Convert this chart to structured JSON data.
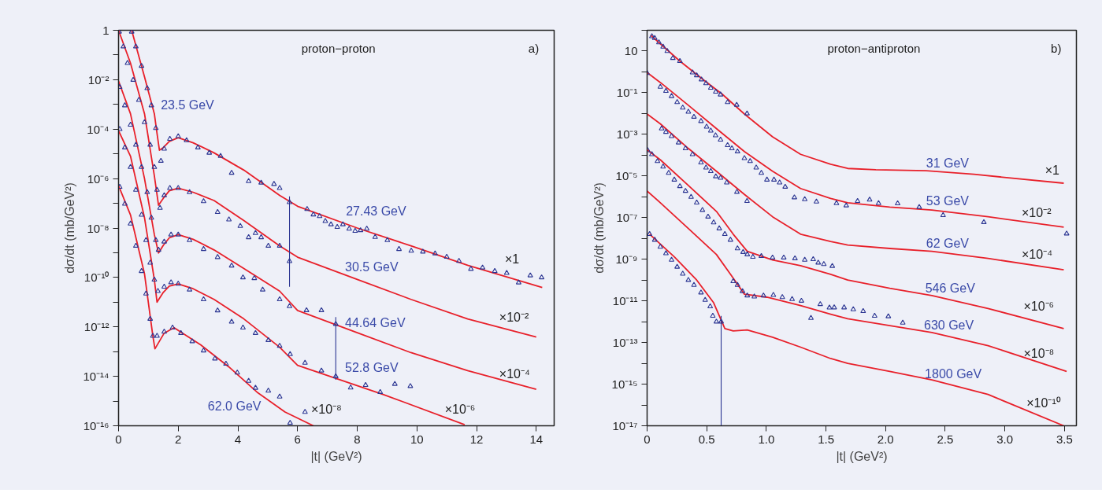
{
  "chart_data": [
    {
      "type": "scatter",
      "title": "proton−proton",
      "subtitle": "a)",
      "xlabel": "|t| (GeV²)",
      "ylabel": "dσ/dt (mb/GeV²)",
      "log": "y",
      "grid": false,
      "xlim": [
        0,
        14.6
      ],
      "ylim": [
        1e-16,
        1
      ],
      "xticks": [
        0,
        2,
        4,
        6,
        8,
        10,
        12,
        14
      ],
      "yticks": [
        1,
        {
          "value": 0.1,
          "label": null
        },
        {
          "value": 0.01,
          "label": "10⁻²"
        },
        {
          "value": 0.001,
          "label": null
        },
        {
          "value": 0.0001,
          "label": "10⁻⁴"
        },
        {
          "value": 1e-05,
          "label": null
        },
        {
          "value": 1e-06,
          "label": "10⁻⁶"
        },
        {
          "value": 1e-07,
          "label": null
        },
        {
          "value": 1e-08,
          "label": "10⁻⁸"
        },
        {
          "value": 1e-09,
          "label": null
        },
        {
          "value": 1e-10,
          "label": "10⁻¹⁰"
        },
        {
          "value": 1e-11,
          "label": null
        },
        {
          "value": 1e-12,
          "label": "10⁻¹²"
        },
        {
          "value": 1e-13,
          "label": null
        },
        {
          "value": 1e-14,
          "label": "10⁻¹⁴"
        },
        {
          "value": 1e-15,
          "label": null
        },
        {
          "value": 1e-16,
          "label": "10⁻¹⁶"
        }
      ],
      "series": [
        {
          "type": "line",
          "color": "#e8202a",
          "x": [
            0.44,
            0.87,
            1.2,
            1.29,
            1.37,
            1.5,
            1.7,
            2.0,
            2.5,
            3.2,
            4.2,
            5.4,
            6.0,
            8.0,
            9.8,
            11.7,
            14.2
          ],
          "values": [
            1,
            0.013,
            0.00042,
            6.6e-05,
            1.4e-05,
            1.8e-05,
            3.2e-05,
            4.5e-05,
            2.8e-05,
            1.1e-05,
            2.2e-06,
            2.1e-07,
            7.6e-08,
            1e-08,
            1.9e-09,
            3.1e-10,
            3.9e-11
          ]
        },
        {
          "type": "line",
          "color": "#e8202a",
          "x": [
            0,
            0.4,
            0.87,
            1.2,
            1.34,
            1.5,
            1.7,
            2.0,
            2.5,
            3.2,
            4.2,
            5.4,
            6.0,
            8.0,
            9.8,
            11.7,
            14.0
          ],
          "values": [
            1,
            0.047,
            0.00042,
            1.3e-06,
            8.3e-08,
            1.6e-07,
            3.2e-07,
            4.1e-07,
            2.8e-07,
            1.3e-07,
            2e-08,
            1.9e-09,
            6.6e-10,
            8.3e-11,
            1.3e-11,
            2.1e-12,
            3.9e-13
          ]
        },
        {
          "type": "line",
          "color": "#e8202a",
          "x": [
            0,
            0.4,
            0.87,
            1.2,
            1.34,
            1.5,
            1.7,
            2.0,
            2.5,
            3.2,
            4.2,
            5.4,
            6.0,
            8.0,
            9.8,
            11.7,
            14.0
          ],
          "values": [
            0.0089,
            0.00042,
            1e-06,
            5.4e-09,
            9.8e-10,
            2e-09,
            4e-09,
            5.4e-09,
            3.5e-09,
            1.3e-09,
            2.3e-10,
            2.8e-11,
            4.6e-12,
            5.8e-13,
            9.1e-14,
            1.7e-14,
            3e-15
          ]
        },
        {
          "type": "line",
          "color": "#e8202a",
          "x": [
            0,
            0.4,
            0.87,
            1.2,
            1.29,
            1.5,
            1.7,
            2.0,
            2.5,
            3.2,
            4.2,
            5.4,
            6.0,
            8.9,
            11.6
          ],
          "values": [
            8.7e-05,
            8.1e-06,
            2.6e-08,
            8.1e-11,
            1e-11,
            2.5e-11,
            4.5e-11,
            5.5e-11,
            3.5e-11,
            1.3e-11,
            2.1e-12,
            1.5e-13,
            2.8e-14,
            1.8e-15,
            1.1e-16
          ]
        },
        {
          "type": "line",
          "color": "#e8202a",
          "x": [
            0,
            0.4,
            0.87,
            1.15,
            1.22,
            1.53,
            1.86,
            2.75,
            3.7,
            4.64,
            5.58,
            6.53
          ],
          "values": [
            5.2e-07,
            3.4e-08,
            1.4e-10,
            4.3e-13,
            1.3e-13,
            5.6e-13,
            9.3e-13,
            1.9e-13,
            2.4e-14,
            2.3e-15,
            3.6e-16,
            1e-16
          ]
        },
        {
          "marker": "triangle",
          "color": "#2b3592",
          "x": [
            0.44,
            0.58,
            0.77,
            0.96,
            1.1,
            1.25,
            1.42,
            1.53,
            1.72,
            2.0,
            2.28,
            2.66,
            3.04,
            3.42,
            3.79,
            4.36,
            4.78,
            5.21,
            5.4,
            5.73,
            6.32,
            6.53,
            6.74,
            6.93,
            7.12,
            7.33,
            7.52,
            7.73,
            7.93,
            8.11,
            8.32,
            8.6,
            9.01,
            9.4,
            9.81,
            10.2,
            10.61,
            11.0,
            11.41,
            11.81,
            12.2,
            12.61,
            13.01,
            13.41,
            13.8,
            14.18
          ],
          "values": [
            0.87,
            0.22,
            0.036,
            0.0045,
            0.00091,
            0.00011,
            5.2e-06,
            1.6e-05,
            4e-05,
            5.1e-05,
            3.5e-05,
            1.8e-05,
            1.1e-05,
            8.1e-06,
            1.7e-06,
            7.8e-07,
            6.8e-07,
            6e-07,
            4.1e-07,
            1.1e-07,
            5.8e-08,
            3.5e-08,
            3e-08,
            1.9e-08,
            1.4e-08,
            1.1e-08,
            1.4e-08,
            9.3e-09,
            7.6e-09,
            8.1e-09,
            9.3e-09,
            4.3e-09,
            3.2e-09,
            1.4e-09,
            1.2e-09,
            1.1e-09,
            9.3e-10,
            6.8e-10,
            4.6e-10,
            2.2e-10,
            2.5e-10,
            1.8e-10,
            1.5e-10,
            6.2e-11,
            1.2e-10,
            1e-10
          ]
        },
        {
          "marker": "triangle",
          "color": "#2b3592",
          "x": [
            0.02,
            0.16,
            0.3,
            0.49,
            0.68,
            0.87,
            1.06,
            1.2,
            1.29,
            1.39,
            1.53,
            1.72,
            2.0,
            2.38,
            2.85,
            3.32,
            3.7,
            4.08,
            4.36,
            4.59,
            4.78,
            5.02,
            5.4,
            5.73
          ],
          "values": [
            0.87,
            0.22,
            0.047,
            0.0098,
            0.0015,
            0.00019,
            2.3e-05,
            2.9e-06,
            3.5e-07,
            6.5e-08,
            2.1e-07,
            4.1e-07,
            4.1e-07,
            2.8e-07,
            1.2e-07,
            4.4e-08,
            2.2e-08,
            1.2e-08,
            4.2e-09,
            6.2e-09,
            4.2e-09,
            1.9e-09,
            1.9e-09,
            4.5e-10
          ],
          "errors": [
            null,
            null,
            null,
            null,
            null,
            null,
            null,
            null,
            null,
            null,
            null,
            null,
            null,
            null,
            null,
            null,
            null,
            null,
            null,
            null,
            null,
            null,
            null,
            [
              4.2e-11,
              1.9e-07
            ]
          ]
        },
        {
          "marker": "triangle",
          "color": "#2b3592",
          "x": [
            0.04,
            0.21,
            0.4,
            0.58,
            0.77,
            0.96,
            1.1,
            1.25,
            1.34,
            1.53,
            1.76,
            2.0,
            2.38,
            2.85,
            3.32,
            3.79,
            4.17,
            4.55,
            4.83,
            5.4,
            5.73,
            6.3,
            6.8,
            7.28
          ],
          "values": [
            0.005,
            0.00091,
            0.00015,
            2.3e-05,
            2.9e-06,
            2.8e-07,
            2.6e-08,
            3.2e-09,
            1.3e-09,
            2.8e-09,
            5.4e-09,
            5.4e-09,
            3.2e-09,
            1.4e-09,
            6.6e-10,
            3e-10,
            1e-10,
            9.3e-11,
            3.2e-11,
            1.3e-11,
            6.8e-12,
            4.7e-12,
            4.7e-12,
            1.3e-12
          ]
        },
        {
          "marker": "triangle",
          "color": "#2b3592",
          "x": [
            0.04,
            0.21,
            0.4,
            0.58,
            0.77,
            0.92,
            1.06,
            1.2,
            1.32,
            1.53,
            1.76,
            2.0,
            2.38,
            2.85,
            3.32,
            3.79,
            4.17,
            4.59,
            5.02,
            5.4,
            5.75,
            6.25,
            6.8,
            7.28,
            7.78,
            8.28,
            8.77,
            9.26,
            9.78
          ],
          "values": [
            0.0001,
            1.8e-05,
            2.9e-06,
            3.5e-07,
            3.4e-08,
            3.2e-09,
            3.9e-10,
            8.1e-11,
            2.8e-11,
            4.2e-11,
            6.3e-11,
            5.5e-11,
            3.2e-11,
            1.3e-11,
            4.6e-12,
            1.6e-12,
            9.3e-13,
            5.6e-13,
            2.9e-13,
            1.7e-13,
            7.8e-14,
            3.5e-14,
            1.7e-14,
            1e-14,
            3.5e-15,
            4.4e-15,
            2.3e-15,
            4.9e-15,
            4e-15
          ],
          "errors": [
            null,
            null,
            null,
            null,
            null,
            null,
            null,
            null,
            null,
            null,
            null,
            null,
            null,
            null,
            null,
            null,
            null,
            null,
            null,
            null,
            null,
            null,
            null,
            [
              7.2e-15,
              2.5e-12
            ],
            null,
            null,
            null,
            null,
            null
          ]
        },
        {
          "marker": "triangle",
          "color": "#2b3592",
          "x": [
            0.04,
            0.21,
            0.4,
            0.58,
            0.77,
            0.92,
            1.06,
            1.15,
            1.29,
            1.53,
            1.81,
            2.09,
            2.47,
            2.85,
            3.23,
            3.6,
            3.98,
            4.36,
            4.59,
            5.02,
            5.4,
            5.75,
            6.25
          ],
          "values": [
            4.6e-07,
            9.5e-08,
            1.5e-08,
            1.9e-09,
            1.8e-10,
            2.2e-11,
            2.1e-12,
            4.3e-13,
            4.3e-13,
            6.3e-13,
            9.3e-13,
            5.6e-13,
            2.6e-13,
            1.1e-13,
            5.2e-14,
            3.2e-14,
            1.4e-14,
            6.5e-15,
            3.4e-15,
            2.6e-15,
            1.5e-15,
            1.3e-16,
            3.6e-16
          ]
        }
      ],
      "annotations": [
        "23.5 GeV",
        "27.43 GeV",
        "30.5 GeV",
        "44.64 GeV",
        "52.8 GeV",
        "62.0 GeV",
        "×1",
        "×10⁻²",
        "×10⁻⁴",
        "×10⁻⁶",
        "×10⁻⁸"
      ]
    },
    {
      "type": "scatter",
      "title": "proton−antiproton",
      "subtitle": "b)",
      "xlabel": "|t| (GeV²)",
      "ylabel": "dσ/dt (mb/GeV²)",
      "log": "y",
      "grid": false,
      "xlim": [
        0,
        3.6
      ],
      "ylim": [
        1e-17,
        100
      ],
      "xticks": [
        0,
        0.5,
        {
          "value": 1,
          "label": "1.0"
        },
        1.5,
        {
          "value": 2,
          "label": "2.0"
        },
        2.5,
        {
          "value": 3,
          "label": "3.0"
        },
        3.5
      ],
      "yticks": [
        {
          "value": 100,
          "label": null
        },
        10,
        {
          "value": 1,
          "label": null
        },
        {
          "value": 0.1,
          "label": "10⁻¹"
        },
        {
          "value": 0.01,
          "label": null
        },
        {
          "value": 0.001,
          "label": "10⁻³"
        },
        {
          "value": 0.0001,
          "label": null
        },
        {
          "value": 1e-05,
          "label": "10⁻⁵"
        },
        {
          "value": 1e-06,
          "label": null
        },
        {
          "value": 1e-07,
          "label": "10⁻⁷"
        },
        {
          "value": 1e-08,
          "label": null
        },
        {
          "value": 1e-09,
          "label": "10⁻⁹"
        },
        {
          "value": 1e-10,
          "label": null
        },
        {
          "value": 1e-11,
          "label": "10⁻¹¹"
        },
        {
          "value": 1e-12,
          "label": null
        },
        {
          "value": 1e-13,
          "label": "10⁻¹³"
        },
        {
          "value": 1e-14,
          "label": null
        },
        {
          "value": 1e-15,
          "label": "10⁻¹⁵"
        },
        {
          "value": 1e-16,
          "label": null
        },
        {
          "value": 1e-17,
          "label": "10⁻¹⁷"
        }
      ],
      "series": [
        {
          "type": "line",
          "color": "#e8202a",
          "x": [
            0.03,
            0.275,
            0.487,
            0.628,
            0.816,
            1.052,
            1.287,
            1.539,
            1.682,
            1.918,
            2.341,
            2.741,
            3.494
          ],
          "values": [
            58,
            3.3,
            0.36,
            0.087,
            0.0095,
            0.00076,
            0.00011,
            3.7e-05,
            2.3e-05,
            2e-05,
            1.8e-05,
            1.2e-05,
            4.5e-06
          ]
        },
        {
          "type": "line",
          "color": "#e8202a",
          "x": [
            0,
            0.111,
            0.346,
            0.581,
            0.816,
            1.052,
            1.287,
            1.539,
            1.682,
            2.035,
            2.388,
            2.859,
            3.494
          ],
          "values": [
            0.93,
            0.31,
            0.025,
            0.0019,
            0.00015,
            1.7e-05,
            2.5e-06,
            8.3e-07,
            5.2e-07,
            3.2e-07,
            2.3e-07,
            1.1e-07,
            3.5e-08
          ]
        },
        {
          "type": "line",
          "color": "#e8202a",
          "x": [
            0,
            0.111,
            0.346,
            0.581,
            0.816,
            1.052,
            1.287,
            1.539,
            1.682,
            2.035,
            2.388,
            2.859,
            3.494
          ],
          "values": [
            0.0095,
            0.0032,
            0.00021,
            1.7e-05,
            1.3e-06,
            1.1e-07,
            1.6e-08,
            7.2e-09,
            4.8e-09,
            3.3e-09,
            2.4e-09,
            1.1e-09,
            3.1e-10
          ]
        },
        {
          "type": "line",
          "color": "#e8202a",
          "x": [
            0,
            0.111,
            0.346,
            0.581,
            0.722,
            0.84,
            1.052,
            1.287,
            1.539,
            1.682,
            2.035,
            2.388,
            2.859,
            3.494
          ],
          "values": [
            0.00018,
            6e-05,
            3.5e-06,
            2e-07,
            1.6e-08,
            2.4e-09,
            9.3e-10,
            4.9e-10,
            1.9e-10,
            1e-10,
            4e-11,
            1.8e-11,
            4.3e-12,
            4.7e-13
          ]
        },
        {
          "type": "line",
          "color": "#e8202a",
          "x": [
            0,
            0.111,
            0.346,
            0.581,
            0.699,
            0.816,
            1.005,
            1.287,
            1.539,
            1.682,
            2.035,
            2.388,
            2.859,
            3.518
          ],
          "values": [
            1.9e-06,
            5.2e-07,
            3e-08,
            1.7e-09,
            1.9e-10,
            2.1e-11,
            1.5e-11,
            5.9e-12,
            2.3e-12,
            1.4e-12,
            6.5e-13,
            3e-13,
            7.1e-14,
            4.1e-15
          ]
        },
        {
          "type": "line",
          "color": "#e8202a",
          "x": [
            0.021,
            0.228,
            0.416,
            0.558,
            0.652,
            0.722,
            0.84,
            1.052,
            1.287,
            1.539,
            1.682,
            2.035,
            2.388,
            2.859,
            3.494
          ],
          "values": [
            1.6e-08,
            1.3e-09,
            1e-10,
            8.1e-12,
            4.7e-13,
            3.6e-13,
            4e-13,
            1.8e-13,
            6e-14,
            1.7e-14,
            1e-14,
            4.1e-15,
            1.6e-15,
            3.2e-16,
            1e-17
          ]
        },
        {
          "marker": "triangle",
          "color": "#2b3592",
          "x": [
            0.04,
            0.064,
            0.099,
            0.134,
            0.169,
            0.216,
            0.275,
            0.381,
            0.416,
            0.456,
            0.494,
            0.534,
            0.576,
            0.616,
            0.675,
            0.751,
            0.838
          ],
          "values": [
            51,
            42,
            26,
            16,
            10,
            4.6,
            3.3,
            0.93,
            0.68,
            0.43,
            0.28,
            0.17,
            0.11,
            0.081,
            0.035,
            0.026,
            0.01
          ]
        },
        {
          "marker": "triangle",
          "color": "#2b3592",
          "x": [
            0,
            0.111,
            0.158,
            0.205,
            0.252,
            0.299,
            0.346,
            0.393,
            0.452,
            0.499,
            0.534,
            0.574,
            0.616,
            0.675,
            0.711,
            0.758,
            0.816,
            0.864,
            0.915,
            0.958,
            1.005,
            1.064,
            1.111,
            1.158,
            1.235,
            1.322,
            1.42,
            1.588,
            1.67,
            1.765,
            1.866,
            1.941,
            2.101,
            2.282,
            2.482,
            2.824,
            3.518
          ],
          "values": [
            0.87,
            0.19,
            0.12,
            0.068,
            0.035,
            0.019,
            0.012,
            0.0069,
            0.0043,
            0.0023,
            0.0015,
            0.00089,
            0.00055,
            0.0003,
            0.00021,
            0.00015,
            7.1e-05,
            5.1e-05,
            2.5e-05,
            1.4e-05,
            6.6e-06,
            6.6e-06,
            4.8e-06,
            3e-06,
            9.3e-07,
            7.6e-07,
            5.8e-07,
            4.9e-07,
            3.8e-07,
            6.2e-07,
            7.2e-07,
            4.9e-07,
            4.8e-07,
            3.2e-07,
            1.3e-07,
            6e-08,
            1.7e-08
          ]
        },
        {
          "marker": "triangle",
          "color": "#2b3592",
          "x": [
            0.122,
            0.158,
            0.205,
            0.264,
            0.322,
            0.381,
            0.452,
            0.494,
            0.534,
            0.576,
            0.616,
            0.668,
            0.753,
            0.838
          ],
          "values": [
            0.0019,
            0.0013,
            0.00081,
            0.0004,
            0.00021,
            0.00011,
            4.4e-05,
            2.5e-05,
            1.7e-05,
            9.5e-06,
            8.1e-06,
            4.8e-06,
            1.7e-06,
            6.2e-07
          ]
        },
        {
          "marker": "triangle",
          "color": "#2b3592",
          "x": [
            0.005,
            0.04,
            0.087,
            0.134,
            0.181,
            0.228,
            0.275,
            0.322,
            0.369,
            0.416,
            0.464,
            0.511,
            0.558,
            0.605,
            0.652,
            0.699,
            0.758,
            0.805,
            0.84,
            0.887,
            0.958,
            1.052,
            1.146,
            1.24,
            1.322,
            1.393,
            1.435,
            1.482,
            1.553
          ],
          "values": [
            0.00017,
            0.00011,
            5.1e-05,
            2.8e-05,
            1.4e-05,
            6.6e-06,
            3.2e-06,
            1.9e-06,
            9.8e-07,
            5.2e-07,
            2.3e-07,
            1.1e-07,
            5.8e-08,
            3e-08,
            1.6e-08,
            8.5e-09,
            3.3e-09,
            2.2e-09,
            1.7e-09,
            1.3e-09,
            1.4e-09,
            1.2e-09,
            1.2e-09,
            1.1e-09,
            9.3e-10,
            1e-09,
            6.8e-10,
            5.8e-10,
            4.7e-10
          ]
        },
        {
          "marker": "triangle",
          "color": "#2b3592",
          "x": [
            0.722,
            0.758,
            0.8,
            0.84,
            0.899,
            0.976,
            1.059,
            1.134,
            1.216,
            1.294,
            1.374,
            1.452,
            1.529,
            1.569,
            1.652,
            1.729,
            1.812,
            1.908,
            2.023,
            2.144
          ],
          "values": [
            8.7e-11,
            5.8e-11,
            2.9e-11,
            1.8e-11,
            1.6e-11,
            1.8e-11,
            1.9e-11,
            1.5e-11,
            1.2e-11,
            1e-11,
            1.5e-12,
            6.9e-12,
            4.7e-12,
            4.8e-12,
            4.8e-12,
            3.9e-12,
            3.2e-12,
            1.9e-12,
            1.8e-12,
            8.9e-13
          ]
        },
        {
          "marker": "triangle",
          "color": "#2b3592",
          "x": [
            0.021,
            0.064,
            0.111,
            0.158,
            0.205,
            0.252,
            0.299,
            0.346,
            0.393,
            0.452,
            0.487,
            0.529,
            0.551,
            0.581,
            0.621
          ],
          "values": [
            1.6e-08,
            8.5e-09,
            3.9e-09,
            1.9e-09,
            9.3e-10,
            4.3e-10,
            2e-10,
            1e-10,
            5.8e-11,
            2.5e-11,
            1.1e-11,
            5.4e-12,
            1.9e-12,
            1e-12,
            1e-12
          ],
          "errors": [
            null,
            null,
            null,
            null,
            null,
            null,
            null,
            null,
            null,
            null,
            null,
            null,
            null,
            null,
            [
              1e-17,
              1.9e-12
            ]
          ]
        }
      ],
      "annotations": [
        "31 GeV",
        "53 GeV",
        "62 GeV",
        "546 GeV",
        "630 GeV",
        "1800 GeV",
        "×1",
        "×10⁻²",
        "×10⁻⁴",
        "×10⁻⁶",
        "×10⁻⁸",
        "×10⁻¹⁰"
      ]
    }
  ]
}
